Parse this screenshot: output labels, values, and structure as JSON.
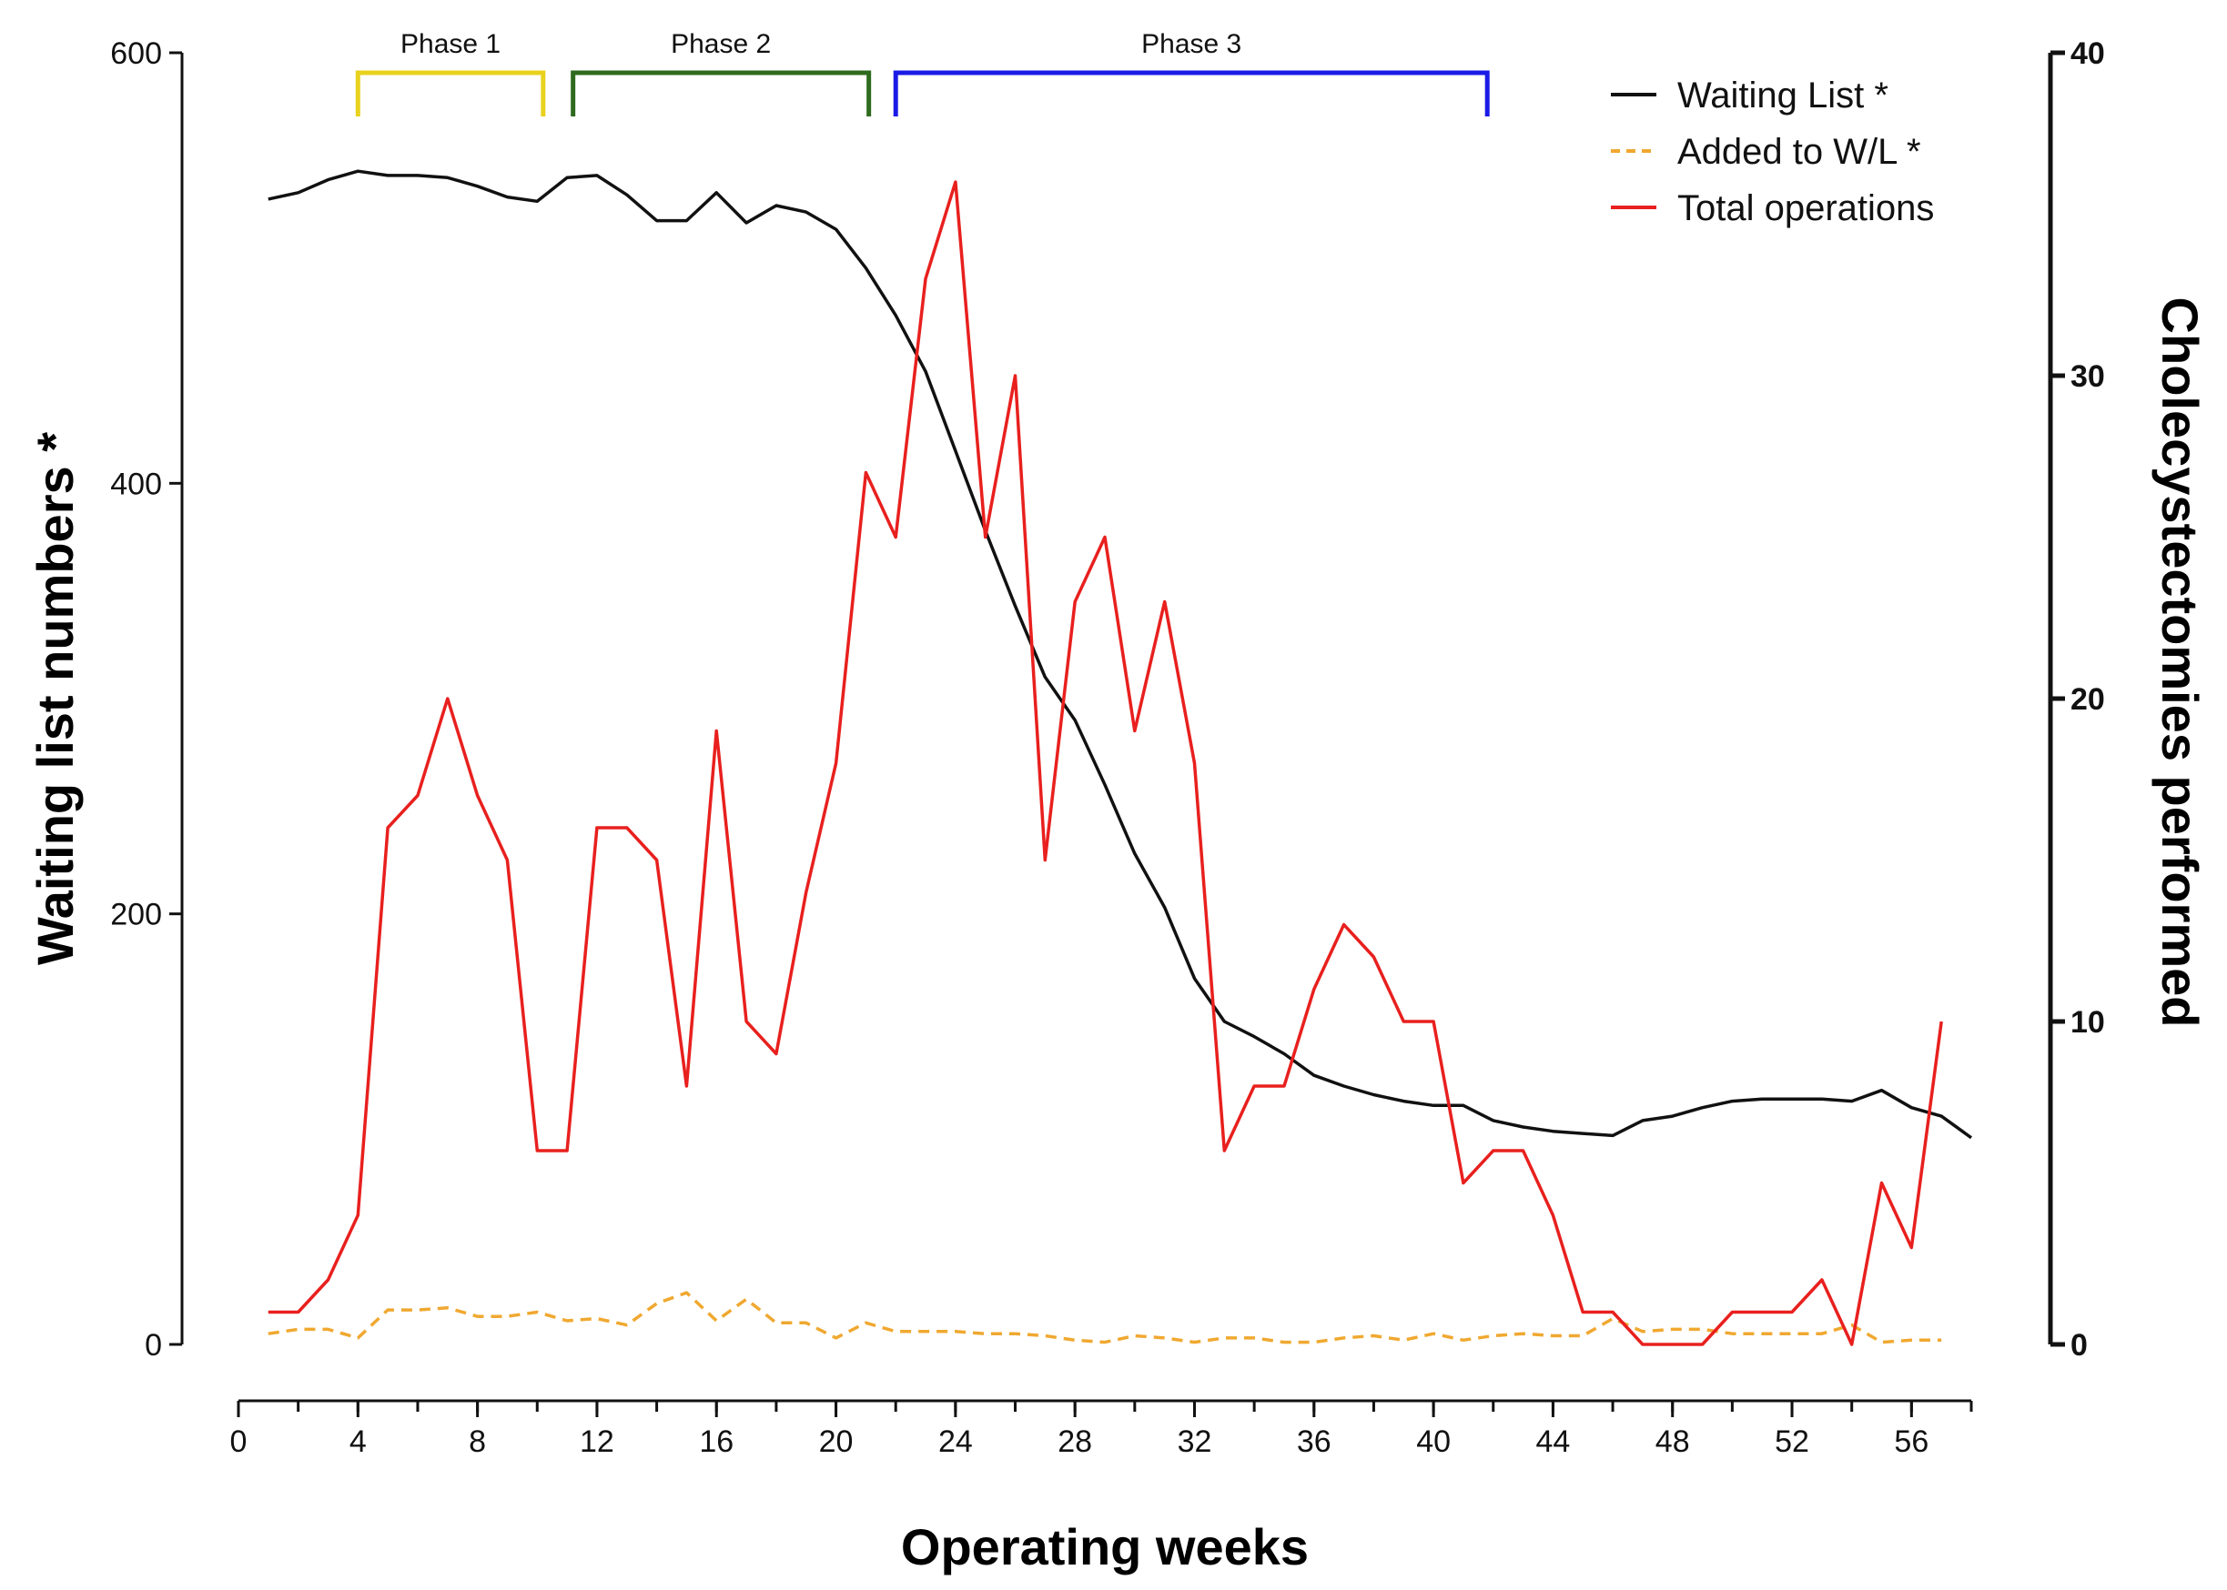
{
  "chart_data": {
    "type": "line",
    "x_axis": {
      "label": "Operating weeks",
      "min": 0,
      "max": 58,
      "ticks": [
        0,
        4,
        8,
        12,
        16,
        20,
        24,
        28,
        32,
        36,
        40,
        44,
        48,
        52,
        56
      ]
    },
    "y_left": {
      "label": "Waiting list numbers *",
      "min": 0,
      "max": 600,
      "ticks": [
        0,
        200,
        400,
        600
      ]
    },
    "y_right": {
      "label": "Cholecystectomies performed",
      "min": 0,
      "max": 40,
      "ticks": [
        0,
        10,
        20,
        30,
        40
      ]
    },
    "legend": {
      "position": "top-right",
      "entries": [
        {
          "label": "Waiting List *",
          "series": "waiting_list"
        },
        {
          "label": "Added to W/L *",
          "series": "added_to_wl"
        },
        {
          "label": "Total operations",
          "series": "total_operations"
        }
      ]
    },
    "phases": [
      {
        "label": "Phase 1",
        "start": 4,
        "end": 10.2,
        "color": "#e8d21d"
      },
      {
        "label": "Phase 2",
        "start": 11.2,
        "end": 21.1,
        "color": "#2e6b1e"
      },
      {
        "label": "Phase 3",
        "start": 22,
        "end": 41.8,
        "color": "#1a1ae6"
      }
    ],
    "series": [
      {
        "name": "Waiting List *",
        "key": "waiting_list",
        "axis": "left",
        "color": "#111111",
        "dash": "",
        "x": [
          1,
          2,
          3,
          4,
          5,
          6,
          7,
          8,
          9,
          10,
          11,
          12,
          13,
          14,
          15,
          16,
          17,
          18,
          19,
          20,
          21,
          22,
          23,
          24,
          25,
          26,
          27,
          28,
          29,
          30,
          31,
          32,
          33,
          34,
          35,
          36,
          37,
          38,
          39,
          40,
          41,
          42,
          43,
          44,
          45,
          46,
          47,
          48,
          49,
          50,
          51,
          52,
          53,
          54,
          55,
          56,
          57,
          58
        ],
        "values": [
          532,
          535,
          541,
          545,
          543,
          543,
          542,
          538,
          533,
          531,
          542,
          543,
          534,
          522,
          522,
          535,
          521,
          529,
          526,
          518,
          500,
          478,
          452,
          415,
          378,
          343,
          310,
          290,
          260,
          228,
          203,
          170,
          150,
          143,
          135,
          125,
          120,
          116,
          113,
          111,
          111,
          104,
          101,
          99,
          98,
          97,
          104,
          106,
          110,
          113,
          114,
          114,
          114,
          113,
          118,
          110,
          106,
          96
        ]
      },
      {
        "name": "Added to W/L *",
        "key": "added_to_wl",
        "axis": "left",
        "color": "#f0a830",
        "dash": "12,8",
        "x": [
          1,
          2,
          3,
          4,
          5,
          6,
          7,
          8,
          9,
          10,
          11,
          12,
          13,
          14,
          15,
          16,
          17,
          18,
          19,
          20,
          21,
          22,
          23,
          24,
          25,
          26,
          27,
          28,
          29,
          30,
          31,
          32,
          33,
          34,
          35,
          36,
          37,
          38,
          39,
          40,
          41,
          42,
          43,
          44,
          45,
          46,
          47,
          48,
          49,
          50,
          51,
          52,
          53,
          54,
          55,
          56,
          57
        ],
        "values": [
          5,
          7,
          7,
          3,
          16,
          16,
          17,
          13,
          13,
          15,
          11,
          12,
          9,
          19,
          24,
          11,
          21,
          10,
          10,
          3,
          10,
          6,
          6,
          6,
          5,
          5,
          4,
          2,
          1,
          4,
          3,
          1,
          3,
          3,
          1,
          1,
          3,
          4,
          2,
          5,
          2,
          4,
          5,
          4,
          4,
          12,
          6,
          7,
          7,
          5,
          5,
          5,
          5,
          9,
          1,
          2,
          2
        ]
      },
      {
        "name": "Total operations",
        "key": "total_operations",
        "axis": "right",
        "color": "#e8201e",
        "dash": "",
        "x": [
          1,
          2,
          3,
          4,
          5,
          6,
          7,
          8,
          9,
          10,
          11,
          12,
          13,
          14,
          15,
          16,
          17,
          18,
          19,
          20,
          21,
          22,
          23,
          24,
          25,
          26,
          27,
          28,
          29,
          30,
          31,
          32,
          33,
          34,
          35,
          36,
          37,
          38,
          39,
          40,
          41,
          42,
          43,
          44,
          45,
          46,
          47,
          48,
          49,
          50,
          51,
          52,
          53,
          54,
          55,
          56,
          57
        ],
        "values": [
          1,
          1,
          2,
          4,
          16,
          17,
          20,
          17,
          15,
          6,
          6,
          16,
          16,
          15,
          8,
          19,
          10,
          9,
          14,
          18,
          27,
          25,
          33,
          36,
          25,
          30,
          15,
          23,
          25,
          19,
          23,
          18,
          6,
          8,
          8,
          11,
          13,
          12,
          10,
          10,
          5,
          6,
          6,
          4,
          1,
          1,
          0,
          0,
          0,
          1,
          1,
          1,
          2,
          0,
          5,
          3,
          10
        ]
      }
    ]
  }
}
